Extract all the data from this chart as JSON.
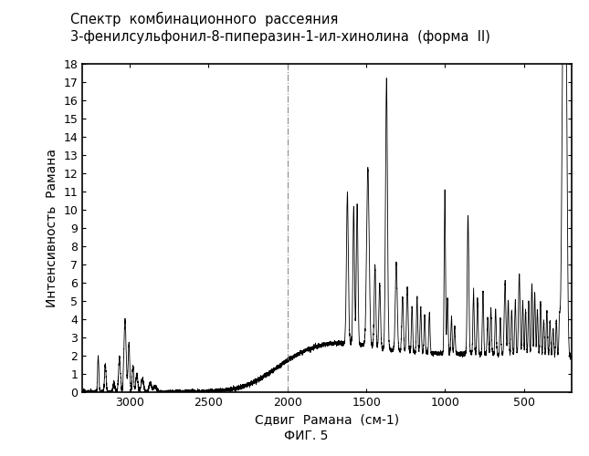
{
  "title_line1": "Спектр  комбинационного  рассеяния",
  "title_line2": "3-фенилсульфонил-8-пиперазин-1-ил-хинолина  (форма  II)",
  "xlabel": "Сдвиг  Рамана  (см-1)",
  "ylabel": "Интенсивность  Рамана",
  "caption": "ФИГ. 5",
  "xmin": 200,
  "xmax": 3300,
  "ymin": 0,
  "ymax": 18,
  "yticks": [
    0,
    1,
    2,
    3,
    4,
    5,
    6,
    7,
    8,
    9,
    10,
    11,
    12,
    13,
    14,
    15,
    16,
    17,
    18
  ],
  "xticks": [
    500,
    1000,
    1500,
    2000,
    2500,
    3000
  ],
  "dashed_line_x": 2000,
  "background": "#ffffff",
  "line_color": "#000000",
  "title_fontsize": 10.5,
  "axis_label_fontsize": 10,
  "tick_fontsize": 9,
  "caption_fontsize": 10
}
